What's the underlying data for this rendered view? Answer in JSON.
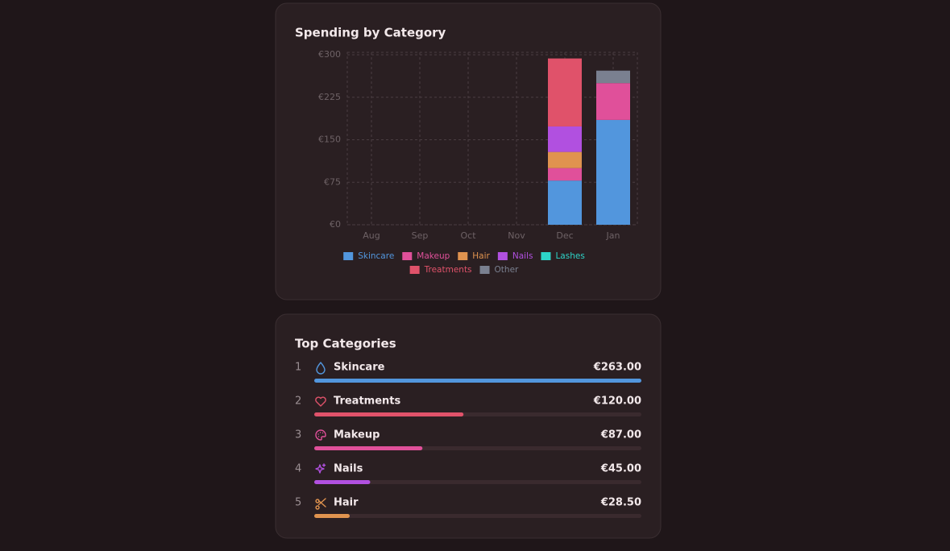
{
  "chart_data": {
    "type": "stacked_bar",
    "title": "Spending by Category",
    "categories": [
      "Aug",
      "Sep",
      "Oct",
      "Nov",
      "Dec",
      "Jan"
    ],
    "series": [
      {
        "name": "Skincare",
        "color": "#5296dd",
        "values": [
          0,
          0,
          0,
          0,
          78,
          185
        ]
      },
      {
        "name": "Makeup",
        "color": "#e0509a",
        "values": [
          0,
          0,
          0,
          0,
          22,
          65
        ]
      },
      {
        "name": "Hair",
        "color": "#e0934f",
        "values": [
          0,
          0,
          0,
          0,
          28.5,
          0
        ]
      },
      {
        "name": "Nails",
        "color": "#b150e0",
        "values": [
          0,
          0,
          0,
          0,
          45,
          0
        ]
      },
      {
        "name": "Lashes",
        "color": "#2dd4c8",
        "values": [
          0,
          0,
          0,
          0,
          0,
          0
        ]
      },
      {
        "name": "Treatments",
        "color": "#e0526a",
        "values": [
          0,
          0,
          0,
          0,
          120,
          0
        ]
      },
      {
        "name": "Other",
        "color": "#7a8090",
        "values": [
          0,
          0,
          0,
          0,
          0,
          22
        ]
      }
    ],
    "ylim": [
      0,
      300
    ],
    "yticks": [
      {
        "value": 0,
        "label": "€0"
      },
      {
        "value": 75,
        "label": "€75"
      },
      {
        "value": 150,
        "label": "€150"
      },
      {
        "value": 225,
        "label": "€225"
      },
      {
        "value": 300,
        "label": "€300"
      }
    ],
    "grid": true,
    "legend": "bottom"
  },
  "top_categories": {
    "title": "Top Categories",
    "items": [
      {
        "rank": 1,
        "name": "Skincare",
        "value": 263,
        "value_label": "€263.00",
        "color": "#5296dd"
      },
      {
        "rank": 2,
        "name": "Treatments",
        "value": 120,
        "value_label": "€120.00",
        "color": "#e0526a"
      },
      {
        "rank": 3,
        "name": "Makeup",
        "value": 87,
        "value_label": "€87.00",
        "color": "#e0509a"
      },
      {
        "rank": 4,
        "name": "Nails",
        "value": 45,
        "value_label": "€45.00",
        "color": "#b150e0"
      },
      {
        "rank": 5,
        "name": "Hair",
        "value": 28.5,
        "value_label": "€28.50",
        "color": "#e0934f"
      }
    ]
  }
}
